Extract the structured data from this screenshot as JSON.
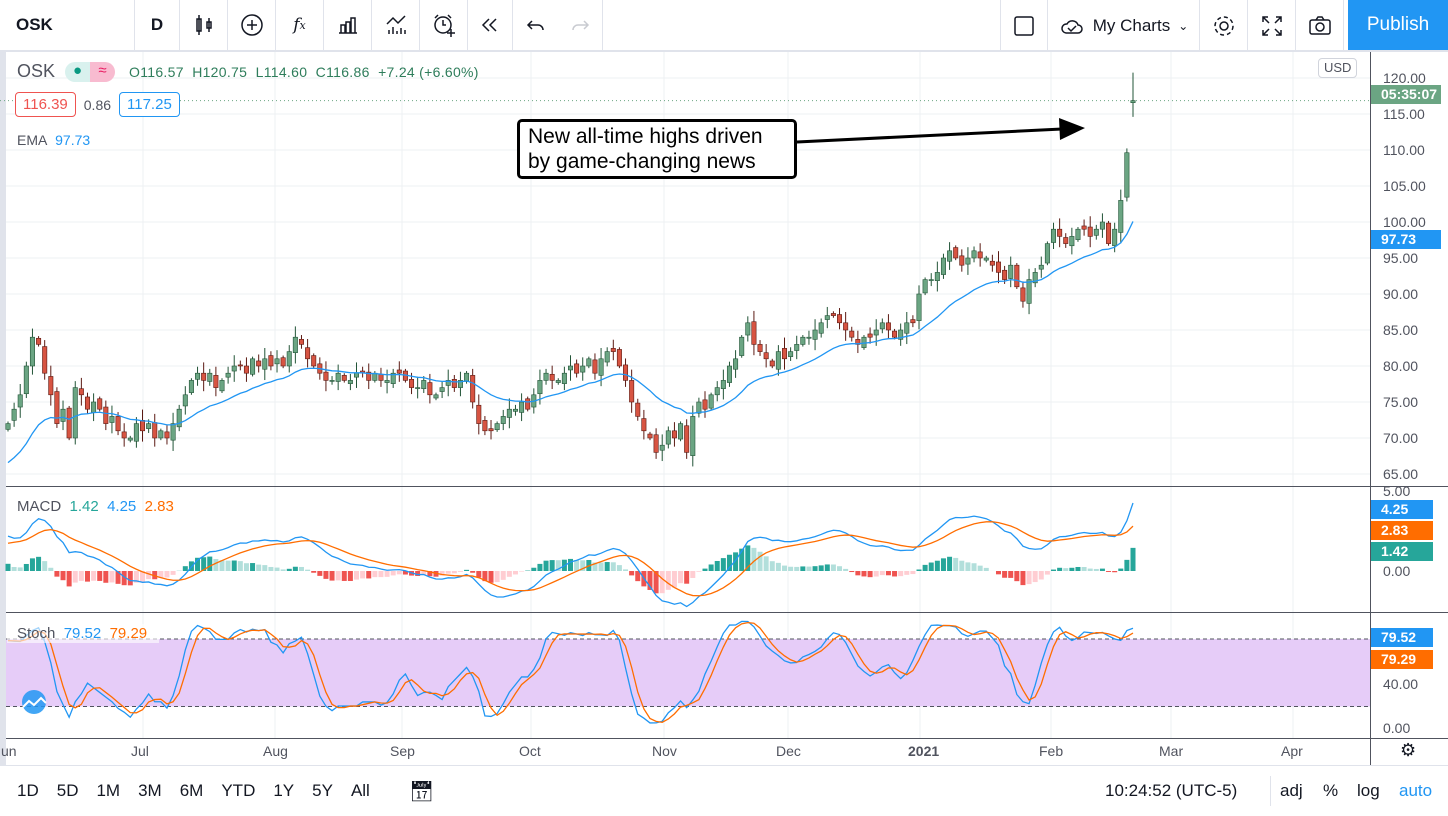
{
  "toolbar": {
    "symbol": "OSK",
    "interval": "D",
    "my_charts": "My Charts",
    "publish": "Publish"
  },
  "legend": {
    "symbol": "OSK",
    "open": "O116.57",
    "high": "H120.75",
    "low": "L114.60",
    "close": "C116.86",
    "change": "+7.24 (+6.60%)",
    "bid": "116.39",
    "spread": "0.86",
    "ask": "117.25",
    "ema_label": "EMA",
    "ema_value": "97.73",
    "macd_label": "MACD",
    "macd_hist": "1.42",
    "macd_line": "4.25",
    "macd_signal": "2.83",
    "stoch_label": "Stoch",
    "stoch_k": "79.52",
    "stoch_d": "79.29"
  },
  "annotation": {
    "line1": "New all-time highs driven",
    "line2": "by game-changing news"
  },
  "axis": {
    "currency": "USD",
    "countdown": "05:35:07",
    "ema_tag": "97.73",
    "macd_tags": [
      "4.25",
      "2.83",
      "1.42"
    ],
    "stoch_tags": [
      "79.52",
      "79.29"
    ],
    "price_ticks": [
      "120.00",
      "115.00",
      "110.00",
      "105.00",
      "100.00",
      "95.00",
      "90.00",
      "85.00",
      "80.00",
      "75.00",
      "70.00",
      "65.00"
    ],
    "macd_ticks": [
      "5.00",
      "0.00"
    ],
    "stoch_ticks": [
      "40.00",
      "0.00"
    ],
    "time_ticks": [
      "Jun",
      "Jul",
      "Aug",
      "Sep",
      "Oct",
      "Nov",
      "Dec",
      "2021",
      "Feb",
      "Mar",
      "Apr"
    ]
  },
  "bottom": {
    "ranges": [
      "1D",
      "5D",
      "1M",
      "3M",
      "6M",
      "YTD",
      "1Y",
      "5Y",
      "All"
    ],
    "clock": "10:24:52 (UTC-5)",
    "adj": "adj",
    "percent": "%",
    "log": "log",
    "auto": "auto"
  },
  "colors": {
    "up": "#6ba583",
    "down": "#d75442",
    "ema": "#2196f3",
    "signal": "#ff6d00",
    "accent": "#2196f3"
  },
  "chart_data": {
    "type": "candlestick",
    "symbol": "OSK",
    "interval": "D",
    "closes": [
      72,
      74,
      76,
      80,
      84,
      83,
      79,
      76,
      72,
      74,
      70,
      77,
      76,
      74,
      75,
      74,
      72,
      73,
      71,
      70,
      70,
      72,
      71,
      72,
      70,
      71,
      70,
      72,
      74,
      76,
      78,
      79,
      78,
      79,
      77,
      78,
      79,
      80,
      80,
      79,
      81,
      80,
      81,
      80,
      81,
      80,
      82,
      84,
      83,
      81,
      80,
      79,
      78,
      78,
      79,
      78,
      78,
      79,
      79,
      78,
      79,
      78,
      78,
      79,
      79,
      78,
      77,
      77,
      78,
      76,
      76,
      77,
      78,
      77,
      78,
      79,
      75,
      72,
      71,
      71,
      72,
      73,
      74,
      74,
      75,
      74,
      76,
      78,
      79,
      78,
      78,
      79,
      80,
      79,
      80,
      81,
      79,
      81,
      82,
      82,
      80,
      78,
      75,
      73,
      71,
      70,
      68,
      69,
      71,
      70,
      72,
      68,
      73,
      75,
      74,
      76,
      77,
      78,
      80,
      81,
      84,
      86,
      83,
      82,
      81,
      80,
      82,
      81,
      82,
      83,
      84,
      84,
      85,
      86,
      87,
      87,
      86,
      85,
      84,
      83,
      84,
      84,
      85,
      86,
      85,
      84,
      85,
      86,
      86,
      90,
      92,
      92,
      93,
      95,
      96,
      95,
      94,
      95,
      96,
      95,
      95,
      94,
      93,
      92,
      94,
      91,
      89,
      92,
      93,
      94,
      97,
      99,
      98,
      97,
      98,
      99,
      99,
      98,
      99,
      100,
      97,
      99,
      103,
      109.62,
      116.86
    ],
    "last": {
      "open": 116.57,
      "high": 120.75,
      "low": 114.6,
      "close": 116.86
    },
    "ylim": [
      63,
      122
    ],
    "indicators": [
      "EMA",
      "MACD",
      "Stoch"
    ]
  }
}
